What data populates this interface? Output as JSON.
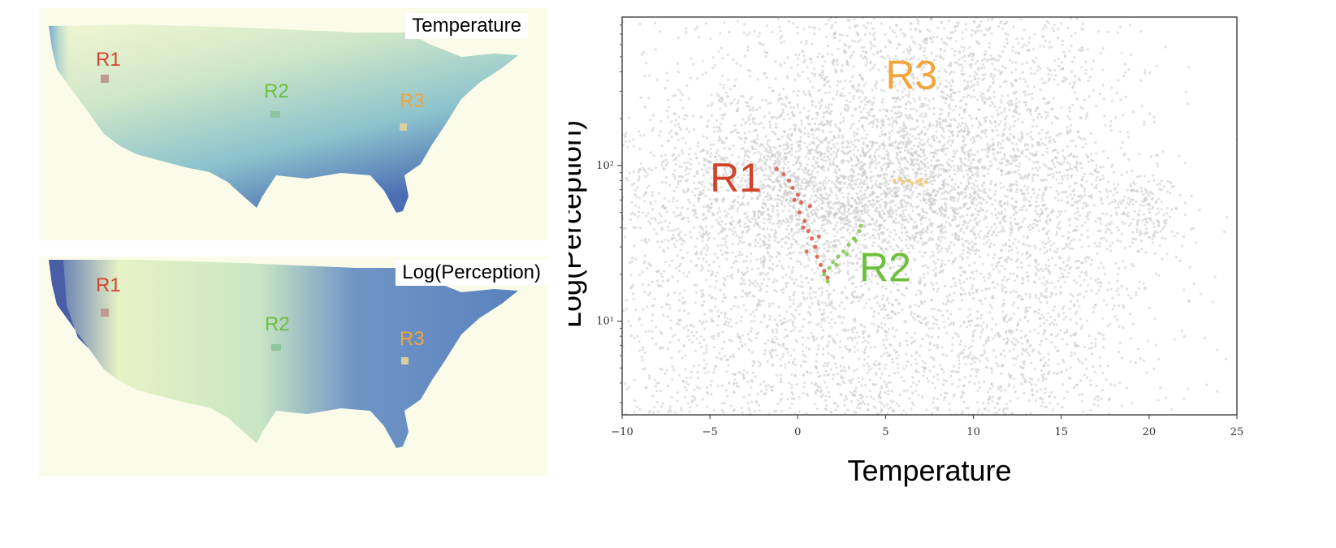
{
  "maps": {
    "temperature": {
      "title": "Temperature",
      "regions": [
        {
          "label": "R1",
          "color": "#d2442a"
        },
        {
          "label": "R2",
          "color": "#6cbf3a"
        },
        {
          "label": "R3",
          "color": "#f2a53a"
        }
      ]
    },
    "precipitation": {
      "title": "Log(Perception)",
      "regions": [
        {
          "label": "R1",
          "color": "#d2442a"
        },
        {
          "label": "R2",
          "color": "#6cbf3a"
        },
        {
          "label": "R3",
          "color": "#f2a53a"
        }
      ]
    }
  },
  "chart_data": {
    "type": "scatter",
    "xlabel": "Temperature",
    "ylabel": "Log(Perception)",
    "xlim": [
      -10,
      25
    ],
    "ylim": [
      2.5,
      900
    ],
    "y_scale": "log",
    "x_ticks": [
      "−10",
      "−5",
      "0",
      "5",
      "10",
      "15",
      "20",
      "25"
    ],
    "y_ticks": [
      "10²",
      "10¹"
    ],
    "grid": false,
    "background_color": "#c9c9c9",
    "series": [
      {
        "name": "R1",
        "color": "#d2442a",
        "label_color": "#d2442a",
        "points": [
          [
            -1.2,
            95
          ],
          [
            -0.8,
            88
          ],
          [
            -0.5,
            80
          ],
          [
            -0.3,
            72
          ],
          [
            0.0,
            65
          ],
          [
            0.2,
            58
          ],
          [
            0.1,
            50
          ],
          [
            0.4,
            44
          ],
          [
            0.6,
            38
          ],
          [
            0.8,
            34
          ],
          [
            1.0,
            30
          ],
          [
            1.1,
            26
          ],
          [
            1.3,
            23
          ],
          [
            1.5,
            21
          ],
          [
            1.7,
            19
          ],
          [
            0.3,
            40
          ],
          [
            0.7,
            55
          ],
          [
            -0.2,
            60
          ],
          [
            1.2,
            35
          ],
          [
            0.5,
            28
          ]
        ]
      },
      {
        "name": "R2",
        "color": "#6cbf3a",
        "label_color": "#6cbf3a",
        "points": [
          [
            1.5,
            20
          ],
          [
            1.8,
            22
          ],
          [
            2.0,
            24
          ],
          [
            2.3,
            26
          ],
          [
            2.6,
            28
          ],
          [
            2.9,
            31
          ],
          [
            3.2,
            34
          ],
          [
            3.5,
            38
          ],
          [
            1.7,
            18
          ],
          [
            2.2,
            23
          ],
          [
            2.8,
            27
          ],
          [
            3.3,
            33
          ],
          [
            3.6,
            41
          ]
        ]
      },
      {
        "name": "R3",
        "color": "#f0c36a",
        "label_color": "#f2a53a",
        "points": [
          [
            5.5,
            80
          ],
          [
            6.0,
            78
          ],
          [
            6.5,
            77
          ],
          [
            7.0,
            76
          ],
          [
            7.3,
            78
          ],
          [
            5.8,
            82
          ],
          [
            6.3,
            80
          ],
          [
            6.8,
            79
          ],
          [
            7.0,
            81
          ]
        ]
      }
    ]
  }
}
